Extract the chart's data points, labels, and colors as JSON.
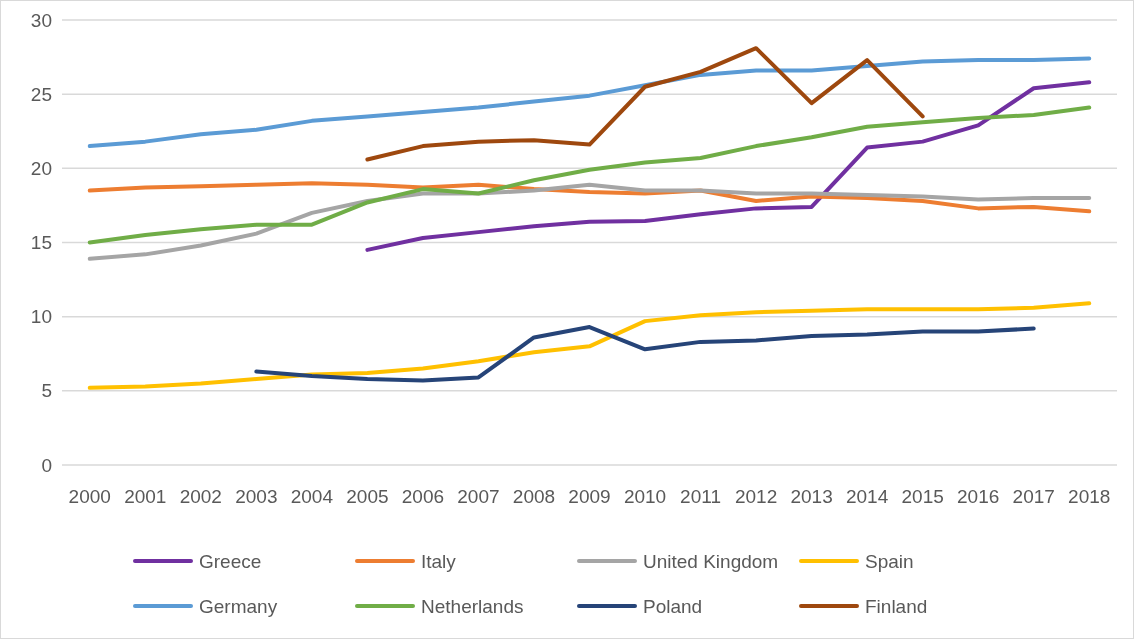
{
  "chart_data": {
    "type": "line",
    "categories": [
      "2000",
      "2001",
      "2002",
      "2003",
      "2004",
      "2005",
      "2006",
      "2007",
      "2008",
      "2009",
      "2010",
      "2011",
      "2012",
      "2013",
      "2014",
      "2015",
      "2016",
      "2017",
      "2018"
    ],
    "ylim": [
      0,
      30
    ],
    "yticks": [
      0,
      5,
      10,
      15,
      20,
      25,
      30
    ],
    "grid": "y",
    "legend": "bottom",
    "marker": "none",
    "line_style": "solid",
    "series": [
      {
        "name": "Greece",
        "color": "#7030a0",
        "values": [
          null,
          null,
          null,
          null,
          null,
          14.5,
          15.3,
          15.7,
          16.1,
          16.4,
          16.45,
          16.9,
          17.3,
          17.4,
          21.4,
          21.8,
          22.9,
          25.4,
          25.8
        ]
      },
      {
        "name": "Italy",
        "color": "#ed7d31",
        "values": [
          18.5,
          18.7,
          18.8,
          18.9,
          19.0,
          18.9,
          18.7,
          18.9,
          18.6,
          18.4,
          18.3,
          18.5,
          17.8,
          18.1,
          18.0,
          17.8,
          17.3,
          17.4,
          17.1
        ]
      },
      {
        "name": "United Kingdom",
        "color": "#a5a5a5",
        "values": [
          13.9,
          14.2,
          14.8,
          15.6,
          17.0,
          17.8,
          18.3,
          18.3,
          18.5,
          18.9,
          18.5,
          18.5,
          18.3,
          18.3,
          18.2,
          18.1,
          17.9,
          18.0,
          18.0
        ]
      },
      {
        "name": "Spain",
        "color": "#ffc000",
        "values": [
          5.2,
          5.3,
          5.5,
          5.8,
          6.1,
          6.2,
          6.5,
          7.0,
          7.6,
          8.0,
          9.7,
          10.1,
          10.3,
          10.4,
          10.5,
          10.5,
          10.5,
          10.6,
          10.9
        ]
      },
      {
        "name": "Germany",
        "color": "#5b9bd5",
        "values": [
          21.5,
          21.8,
          22.3,
          22.6,
          23.2,
          23.5,
          23.8,
          24.1,
          24.5,
          24.9,
          25.6,
          26.3,
          26.6,
          26.6,
          26.9,
          27.2,
          27.3,
          27.3,
          27.4
        ]
      },
      {
        "name": "Netherlands",
        "color": "#70ad47",
        "values": [
          15.0,
          15.5,
          15.9,
          16.2,
          16.2,
          17.7,
          18.6,
          18.3,
          19.2,
          19.9,
          20.4,
          20.7,
          21.5,
          22.1,
          22.8,
          23.1,
          23.4,
          23.6,
          24.1
        ]
      },
      {
        "name": "Poland",
        "color": "#264478",
        "values": [
          null,
          null,
          null,
          6.3,
          6.0,
          5.8,
          5.7,
          5.9,
          8.6,
          9.3,
          7.8,
          8.3,
          8.4,
          8.7,
          8.8,
          9.0,
          9.0,
          9.2,
          null
        ]
      },
      {
        "name": "Finland",
        "color": "#9e480e",
        "values": [
          null,
          null,
          null,
          null,
          null,
          20.6,
          21.5,
          21.8,
          21.9,
          21.6,
          25.5,
          26.5,
          28.1,
          24.4,
          27.3,
          23.5,
          null,
          null,
          null
        ]
      }
    ]
  }
}
